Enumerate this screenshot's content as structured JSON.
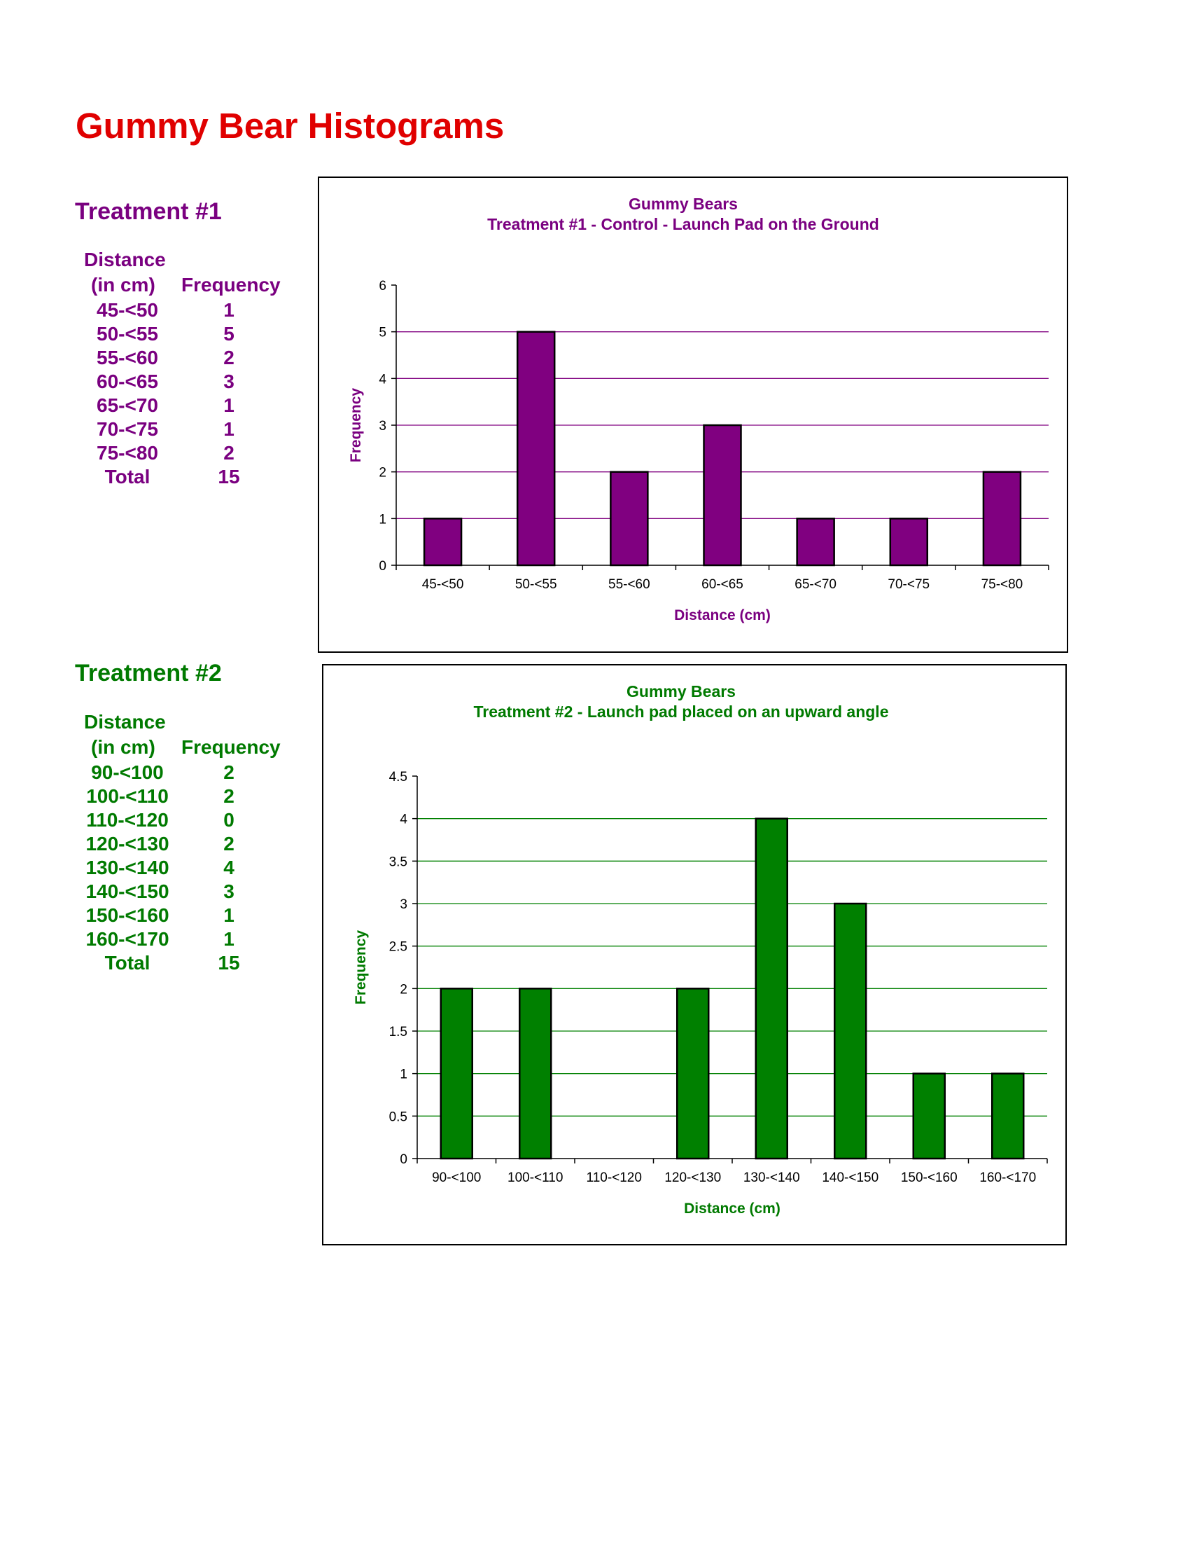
{
  "page": {
    "title": "Gummy Bear Histograms",
    "title_color": "#e00000"
  },
  "treatments": [
    {
      "heading": "Treatment #1",
      "color": "#7a0080",
      "table": {
        "col_header_line1": "Distance",
        "col_header_line2": "(in cm)",
        "freq_header": "Frequency",
        "rows": [
          {
            "range": "45-<50",
            "freq": "1"
          },
          {
            "range": "50-<55",
            "freq": "5"
          },
          {
            "range": "55-<60",
            "freq": "2"
          },
          {
            "range": "60-<65",
            "freq": "3"
          },
          {
            "range": "65-<70",
            "freq": "1"
          },
          {
            "range": "70-<75",
            "freq": "1"
          },
          {
            "range": "75-<80",
            "freq": "2"
          }
        ],
        "total_label": "Total",
        "total_value": "15"
      }
    },
    {
      "heading": "Treatment #2",
      "color": "#007a00",
      "table": {
        "col_header_line1": "Distance",
        "col_header_line2": "(in cm)",
        "freq_header": "Frequency",
        "rows": [
          {
            "range": "90-<100",
            "freq": "2"
          },
          {
            "range": "100-<110",
            "freq": "2"
          },
          {
            "range": "110-<120",
            "freq": "0"
          },
          {
            "range": "120-<130",
            "freq": "2"
          },
          {
            "range": "130-<140",
            "freq": "4"
          },
          {
            "range": "140-<150",
            "freq": "3"
          },
          {
            "range": "150-<160",
            "freq": "1"
          },
          {
            "range": "160-<170",
            "freq": "1"
          }
        ],
        "total_label": "Total",
        "total_value": "15"
      }
    }
  ],
  "chart_data": [
    {
      "type": "bar",
      "title": "Gummy Bears",
      "subtitle": "Treatment #1 - Control - Launch Pad on the Ground",
      "categories": [
        "45-<50",
        "50-<55",
        "55-<60",
        "60-<65",
        "65-<70",
        "70-<75",
        "75-<80"
      ],
      "values": [
        1,
        5,
        2,
        3,
        1,
        1,
        2
      ],
      "xlabel": "Distance (cm)",
      "ylabel": "Frequency",
      "ylim": [
        0,
        6
      ],
      "yticks": [
        "0",
        "1",
        "2",
        "3",
        "4",
        "5",
        "6"
      ],
      "grid": true,
      "legend": "none",
      "bar_color": "#800080",
      "grid_color": "#800080",
      "text_color": "#7a0080"
    },
    {
      "type": "bar",
      "title": "Gummy Bears",
      "subtitle": "Treatment #2 - Launch pad placed on an upward angle",
      "categories": [
        "90-<100",
        "100-<110",
        "110-<120",
        "120-<130",
        "130-<140",
        "140-<150",
        "150-<160",
        "160-<170"
      ],
      "values": [
        2,
        2,
        0,
        2,
        4,
        3,
        1,
        1
      ],
      "xlabel": "Distance (cm)",
      "ylabel": "Frequency",
      "ylim": [
        0,
        4.5
      ],
      "yticks": [
        "0",
        "0.5",
        "1",
        "1.5",
        "2",
        "2.5",
        "3",
        "3.5",
        "4",
        "4.5"
      ],
      "grid": true,
      "legend": "none",
      "bar_color": "#008000",
      "grid_color": "#008000",
      "text_color": "#007a00"
    }
  ]
}
